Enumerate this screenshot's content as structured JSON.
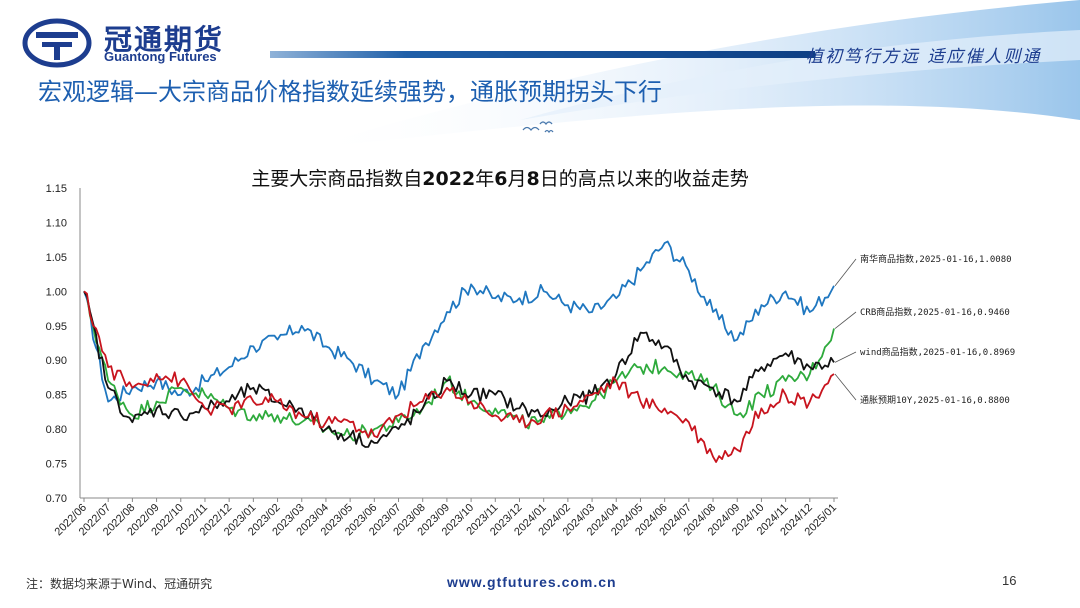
{
  "header": {
    "brand_cn": "冠通期货",
    "brand_en": "Guantong Futures",
    "slogan": "植初笃行方远  适应催人则通",
    "slide_title": "宏观逻辑—大宗商品价格指数延续强势，通胀预期拐头下行"
  },
  "footer": {
    "note": "注：数据均来源于Wind、冠通研究",
    "url": "www.gtfutures.com.cn",
    "page": "16"
  },
  "colors": {
    "brand": "#1d3d8f",
    "title_blue": "#1d5fb0"
  },
  "chart_data": {
    "type": "line",
    "title_parts": [
      "主要大宗商品指数自",
      "2022",
      "年",
      "6",
      "月",
      "8",
      "日的高点以来的收益走势"
    ],
    "ylim": [
      0.7,
      1.15
    ],
    "yticks": [
      "0.70",
      "0.75",
      "0.80",
      "0.85",
      "0.90",
      "0.95",
      "1.00",
      "1.05",
      "1.10",
      "1.15"
    ],
    "x_categories": [
      "2022/06",
      "2022/07",
      "2022/08",
      "2022/09",
      "2022/10",
      "2022/11",
      "2022/12",
      "2023/01",
      "2023/02",
      "2023/03",
      "2023/04",
      "2023/05",
      "2023/06",
      "2023/07",
      "2023/08",
      "2023/09",
      "2023/10",
      "2023/11",
      "2023/12",
      "2024/01",
      "2024/02",
      "2024/03",
      "2024/04",
      "2024/05",
      "2024/06",
      "2024/07",
      "2024/08",
      "2024/09",
      "2024/10",
      "2024/11",
      "2024/12",
      "2025/01"
    ],
    "grid": false,
    "series": [
      {
        "name": "南华商品指数",
        "color": "#1f77c0",
        "end_label": "南华商品指数,2025-01-16,1.0080",
        "values": [
          1.0,
          0.84,
          0.86,
          0.87,
          0.85,
          0.87,
          0.89,
          0.92,
          0.93,
          0.95,
          0.92,
          0.9,
          0.87,
          0.85,
          0.92,
          0.97,
          1.01,
          0.99,
          0.99,
          1.0,
          0.98,
          0.97,
          0.99,
          1.03,
          1.07,
          1.03,
          0.97,
          0.93,
          0.98,
          1.0,
          0.97,
          1.008
        ]
      },
      {
        "name": "CRB商品指数",
        "color": "#2eaa3c",
        "end_label": "CRB商品指数,2025-01-16,0.9460",
        "values": [
          1.0,
          0.87,
          0.82,
          0.84,
          0.86,
          0.85,
          0.83,
          0.82,
          0.82,
          0.81,
          0.8,
          0.79,
          0.8,
          0.81,
          0.83,
          0.87,
          0.84,
          0.83,
          0.81,
          0.81,
          0.83,
          0.84,
          0.87,
          0.89,
          0.89,
          0.88,
          0.86,
          0.82,
          0.85,
          0.87,
          0.88,
          0.946
        ]
      },
      {
        "name": "wind商品指数",
        "color": "#111111",
        "end_label": "wind商品指数,2025-01-16,0.8969",
        "values": [
          1.0,
          0.86,
          0.81,
          0.83,
          0.82,
          0.83,
          0.84,
          0.86,
          0.84,
          0.83,
          0.8,
          0.79,
          0.78,
          0.8,
          0.83,
          0.87,
          0.85,
          0.85,
          0.83,
          0.82,
          0.84,
          0.85,
          0.88,
          0.94,
          0.92,
          0.87,
          0.86,
          0.84,
          0.89,
          0.91,
          0.89,
          0.8969
        ]
      },
      {
        "name": "通胀预期10Y",
        "color": "#c8141e",
        "end_label": "通胀预期10Y,2025-01-16,0.8800",
        "values": [
          1.0,
          0.89,
          0.86,
          0.88,
          0.87,
          0.83,
          0.83,
          0.84,
          0.84,
          0.82,
          0.81,
          0.81,
          0.79,
          0.82,
          0.84,
          0.86,
          0.84,
          0.82,
          0.81,
          0.82,
          0.83,
          0.85,
          0.87,
          0.84,
          0.83,
          0.81,
          0.76,
          0.77,
          0.83,
          0.85,
          0.84,
          0.88
        ]
      }
    ]
  }
}
